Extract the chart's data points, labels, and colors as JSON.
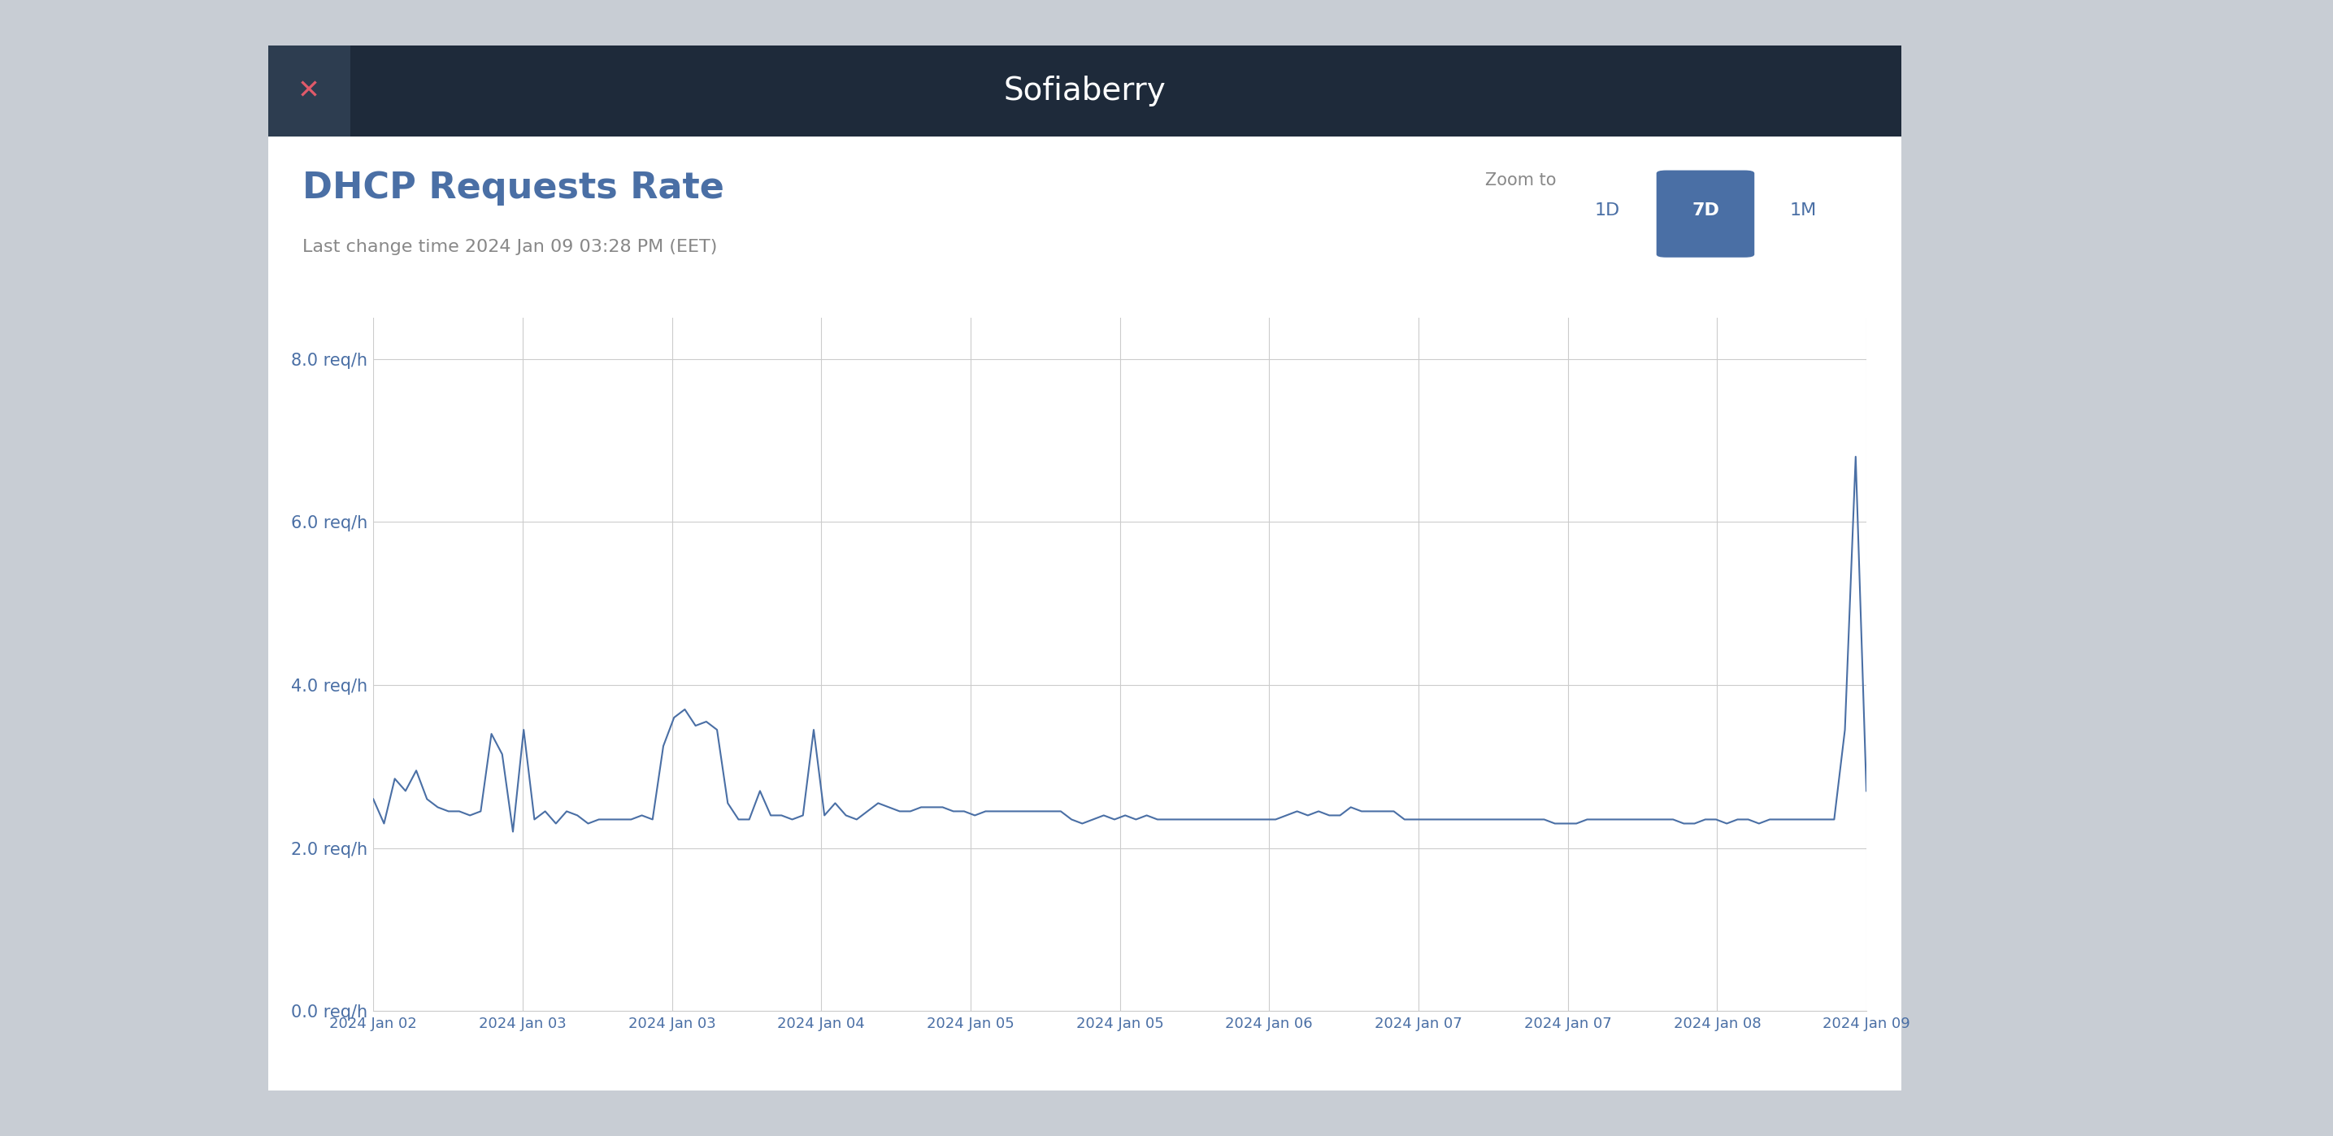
{
  "title": "DHCP Requests Rate",
  "subtitle": "Last change time 2024 Jan 09 03:28 PM (EET)",
  "modal_title": "Sofiaberry",
  "zoom_buttons": [
    "1D",
    "7D",
    "1M"
  ],
  "active_zoom": "7D",
  "ylabel": "req/h",
  "ylim": [
    0.0,
    8.5
  ],
  "yticks": [
    0.0,
    2.0,
    4.0,
    6.0,
    8.0
  ],
  "ytick_labels": [
    "0.0 req/h",
    "2.0 req/h",
    "4.0 req/h",
    "6.0 req/h",
    "8.0 req/h"
  ],
  "xtick_labels": [
    "2024 Jan 02",
    "2024 Jan 03",
    "2024 Jan 03",
    "2024 Jan 04",
    "2024 Jan 05",
    "2024 Jan 05",
    "2024 Jan 06",
    "2024 Jan 07",
    "2024 Jan 07",
    "2024 Jan 08",
    "2024 Jan 09"
  ],
  "x_values": [
    0,
    1,
    2,
    3,
    4,
    5,
    6,
    7,
    8,
    9,
    10
  ],
  "y_values": [
    2.6,
    2.3,
    2.85,
    2.7,
    2.95,
    2.6,
    2.5,
    2.45,
    2.45,
    2.4,
    2.45,
    3.4,
    3.15,
    2.2,
    3.45,
    2.35,
    2.45,
    2.3,
    2.45,
    2.4,
    2.3,
    2.35,
    2.35,
    2.35,
    2.35,
    2.4,
    2.35,
    3.25,
    3.6,
    3.7,
    3.5,
    3.55,
    3.45,
    2.55,
    2.35,
    2.35,
    2.7,
    2.4,
    2.4,
    2.35,
    2.4,
    3.45,
    2.4,
    2.55,
    2.4,
    2.35,
    2.45,
    2.55,
    2.5,
    2.45,
    2.45,
    2.5,
    2.5,
    2.5,
    2.45,
    2.45,
    2.4,
    2.45,
    2.45,
    2.45,
    2.45,
    2.45,
    2.45,
    2.45,
    2.45,
    2.35,
    2.3,
    2.35,
    2.4,
    2.35,
    2.4,
    2.35,
    2.4,
    2.35,
    2.35,
    2.35,
    2.35,
    2.35,
    2.35,
    2.35,
    2.35,
    2.35,
    2.35,
    2.35,
    2.35,
    2.4,
    2.45,
    2.4,
    2.45,
    2.4,
    2.4,
    2.5,
    2.45,
    2.45,
    2.45,
    2.45,
    2.35,
    2.35,
    2.35,
    2.35,
    2.35,
    2.35,
    2.35,
    2.35,
    2.35,
    2.35,
    2.35,
    2.35,
    2.35,
    2.35,
    2.3,
    2.3,
    2.3,
    2.35,
    2.35,
    2.35,
    2.35,
    2.35,
    2.35,
    2.35,
    2.35,
    2.35,
    2.3,
    2.3,
    2.35,
    2.35,
    2.3,
    2.35,
    2.35,
    2.3,
    2.35,
    2.35,
    2.35,
    2.35,
    2.35,
    2.35,
    2.35,
    3.45,
    6.8,
    2.7
  ],
  "line_color": "#4a6fa5",
  "line_width": 1.5,
  "grid_color": "#cccccc",
  "bg_color": "#ffffff",
  "modal_bg": "#1e2a3a",
  "modal_text_color": "#ffffff",
  "title_color": "#4a6fa5",
  "subtitle_color": "#888888",
  "axis_label_color": "#4a6fa5",
  "close_button_color": "#e05a6a",
  "active_zoom_bg": "#4a6fa5",
  "active_zoom_text": "#ffffff",
  "inactive_zoom_text": "#4a6fa5",
  "outer_bg": "#c8cdd4"
}
